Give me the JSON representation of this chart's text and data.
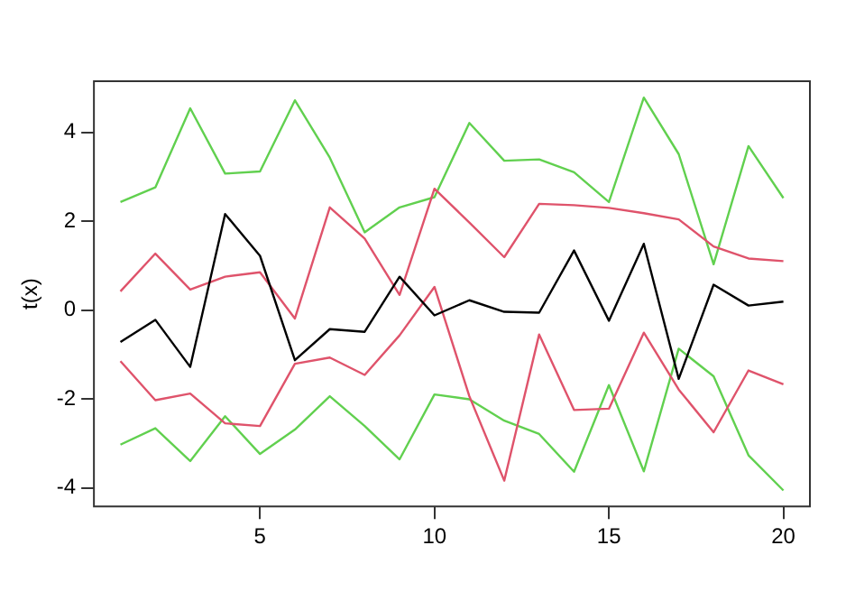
{
  "chart_data": {
    "type": "line",
    "ylabel": "t(x)",
    "x": [
      1,
      2,
      3,
      4,
      5,
      6,
      7,
      8,
      9,
      10,
      11,
      12,
      13,
      14,
      15,
      16,
      17,
      18,
      19,
      20
    ],
    "xlim": [
      0.24,
      20.76
    ],
    "xticks": [
      5,
      10,
      15,
      20
    ],
    "ylim": [
      -4.42,
      5.15
    ],
    "yticks": [
      -4,
      -2,
      0,
      2,
      4
    ],
    "grid": false,
    "legend": false,
    "marker": "none",
    "line_style": "solid",
    "series": [
      {
        "color": "#000000",
        "values": [
          -0.72,
          -0.22,
          -1.28,
          2.16,
          1.22,
          -1.13,
          -0.43,
          -0.49,
          0.75,
          -0.12,
          0.22,
          -0.04,
          -0.06,
          1.34,
          -0.24,
          1.49,
          -1.55,
          0.57,
          0.1,
          0.19
        ]
      },
      {
        "color": "#df536b",
        "values": [
          0.42,
          1.27,
          0.46,
          0.75,
          0.85,
          -0.19,
          2.31,
          1.61,
          0.34,
          2.73,
          1.97,
          1.19,
          2.39,
          2.36,
          2.3,
          2.18,
          2.04,
          1.43,
          1.16,
          1.1
        ]
      },
      {
        "color": "#61d04f",
        "values": [
          2.43,
          2.76,
          4.54,
          3.07,
          3.12,
          4.72,
          3.43,
          1.75,
          2.31,
          2.54,
          4.21,
          3.36,
          3.39,
          3.1,
          2.43,
          4.78,
          3.51,
          1.03,
          3.69,
          2.52
        ]
      },
      {
        "color": "#df536b",
        "values": [
          -1.15,
          -2.03,
          -1.88,
          -2.55,
          -2.61,
          -1.21,
          -1.07,
          -1.46,
          -0.57,
          0.52,
          -1.94,
          -3.84,
          -0.55,
          -2.25,
          -2.22,
          -0.51,
          -1.79,
          -2.75,
          -1.36,
          -1.67
        ]
      },
      {
        "color": "#61d04f",
        "values": [
          -3.03,
          -2.66,
          -3.4,
          -2.39,
          -3.24,
          -2.69,
          -1.94,
          -2.61,
          -3.36,
          -1.9,
          -2.01,
          -2.49,
          -2.79,
          -3.64,
          -1.69,
          -3.63,
          -0.87,
          -1.49,
          -3.27,
          -4.06
        ]
      }
    ]
  }
}
